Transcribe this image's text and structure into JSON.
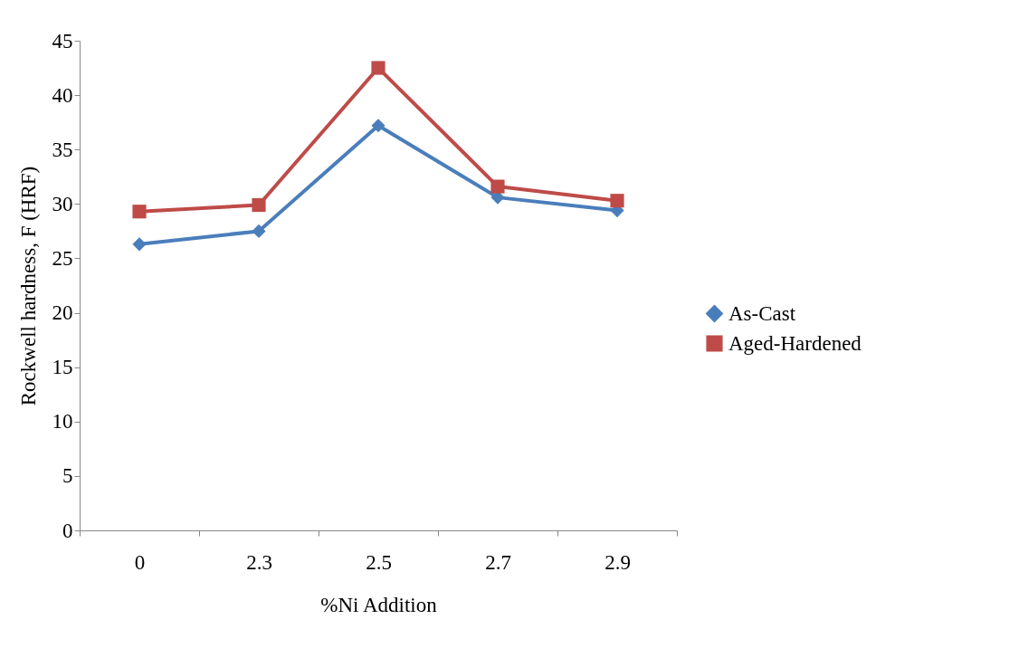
{
  "chart_data": {
    "type": "line",
    "xlabel": "%Ni Addition",
    "ylabel": "Rockwell hardness, F (HRF)",
    "categories": [
      "0",
      "2.3",
      "2.5",
      "2.7",
      "2.9"
    ],
    "ylim": [
      0,
      45
    ],
    "yticks": [
      0,
      5,
      10,
      15,
      20,
      25,
      30,
      35,
      40,
      45
    ],
    "grid": false,
    "legend": "right",
    "line_style": "solid",
    "series": [
      {
        "name": "As-Cast",
        "color": "#4a7ebb",
        "marker": "diamond",
        "values": [
          26.3,
          27.5,
          37.2,
          30.6,
          29.4
        ]
      },
      {
        "name": "Aged-Hardened",
        "color": "#be4b48",
        "marker": "square",
        "values": [
          29.3,
          29.9,
          42.5,
          31.6,
          30.3
        ]
      }
    ]
  }
}
